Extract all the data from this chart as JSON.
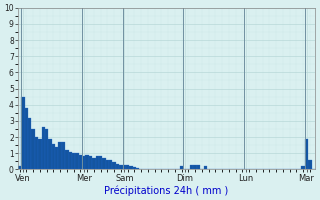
{
  "title": "Précipitations 24h ( mm )",
  "background_color": "#daf0f0",
  "bar_color": "#1455a0",
  "bar_edge_color": "#2266cc",
  "ylim": [
    0,
    10
  ],
  "yticks": [
    0,
    1,
    2,
    3,
    4,
    5,
    6,
    7,
    8,
    9,
    10
  ],
  "grid_major_color": "#b8d8d8",
  "grid_minor_color": "#cce8e8",
  "day_labels": [
    "Ven",
    "Mer",
    "Sam",
    "Dim",
    "Lun",
    "Mar"
  ],
  "day_positions": [
    1,
    19,
    31,
    49,
    67,
    85
  ],
  "vline_color": "#7090a0",
  "title_color": "#0000cc",
  "tick_color": "#222222",
  "values": [
    0.2,
    4.5,
    3.8,
    3.2,
    2.5,
    2.0,
    1.9,
    2.6,
    2.5,
    1.9,
    1.6,
    1.4,
    1.7,
    1.7,
    1.2,
    1.1,
    1.0,
    1.0,
    0.9,
    0.85,
    0.9,
    0.85,
    0.7,
    0.85,
    0.8,
    0.7,
    0.6,
    0.55,
    0.45,
    0.35,
    0.3,
    0.25,
    0.25,
    0.2,
    0.15,
    0.1,
    0.05,
    0.0,
    0.0,
    0.0,
    0.0,
    0.0,
    0.0,
    0.0,
    0.0,
    0.0,
    0.0,
    0.0,
    0.2,
    0.0,
    0.0,
    0.25,
    0.3,
    0.3,
    0.0,
    0.2,
    0.0,
    0.0,
    0.0,
    0.0,
    0.0,
    0.0,
    0.0,
    0.0,
    0.0,
    0.0,
    0.0,
    0.0,
    0.0,
    0.0,
    0.0,
    0.0,
    0.0,
    0.0,
    0.0,
    0.0,
    0.0,
    0.0,
    0.0,
    0.0,
    0.0,
    0.0,
    0.0,
    0.0,
    0.2,
    1.9,
    0.6,
    0.0
  ]
}
